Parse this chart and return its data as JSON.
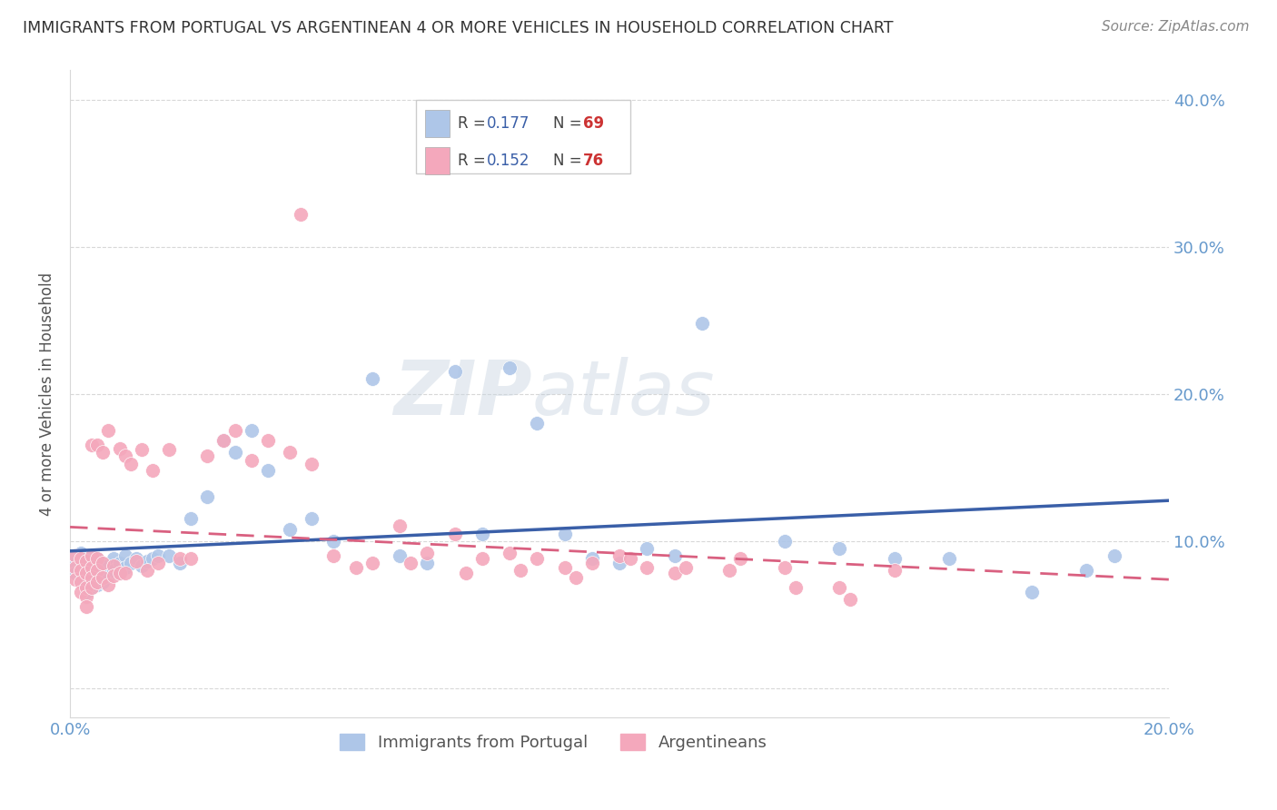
{
  "title": "IMMIGRANTS FROM PORTUGAL VS ARGENTINEAN 4 OR MORE VEHICLES IN HOUSEHOLD CORRELATION CHART",
  "source": "Source: ZipAtlas.com",
  "ylabel": "4 or more Vehicles in Household",
  "xlim": [
    0.0,
    0.2
  ],
  "ylim": [
    -0.02,
    0.42
  ],
  "ytick_positions": [
    0.0,
    0.1,
    0.2,
    0.3,
    0.4
  ],
  "ytick_labels_right": [
    "",
    "10.0%",
    "20.0%",
    "30.0%",
    "40.0%"
  ],
  "xtick_positions": [
    0.0,
    0.05,
    0.1,
    0.15,
    0.2
  ],
  "xtick_labels": [
    "0.0%",
    "",
    "",
    "",
    "20.0%"
  ],
  "color_portugal": "#aec6e8",
  "color_argentina": "#f4a8bc",
  "color_portugal_line": "#3a5fa8",
  "color_argentina_line": "#d96080",
  "color_tick": "#6699cc",
  "color_title": "#333333",
  "color_grid": "#d8d8d8",
  "watermark_text": "ZIPatlas",
  "legend_r1": "0.177",
  "legend_n1": "69",
  "legend_r2": "0.152",
  "legend_n2": "76",
  "port_x": [
    0.001,
    0.001,
    0.001,
    0.002,
    0.002,
    0.002,
    0.002,
    0.003,
    0.003,
    0.003,
    0.003,
    0.003,
    0.004,
    0.004,
    0.004,
    0.004,
    0.004,
    0.005,
    0.005,
    0.005,
    0.005,
    0.006,
    0.006,
    0.006,
    0.007,
    0.007,
    0.008,
    0.008,
    0.009,
    0.009,
    0.01,
    0.01,
    0.011,
    0.012,
    0.013,
    0.014,
    0.015,
    0.016,
    0.018,
    0.02,
    0.022,
    0.025,
    0.028,
    0.03,
    0.033,
    0.036,
    0.04,
    0.044,
    0.048,
    0.055,
    0.06,
    0.065,
    0.07,
    0.075,
    0.08,
    0.085,
    0.09,
    0.095,
    0.1,
    0.105,
    0.11,
    0.115,
    0.13,
    0.14,
    0.15,
    0.16,
    0.175,
    0.185,
    0.19
  ],
  "port_y": [
    0.085,
    0.09,
    0.078,
    0.088,
    0.082,
    0.075,
    0.092,
    0.086,
    0.08,
    0.074,
    0.07,
    0.065,
    0.09,
    0.085,
    0.078,
    0.072,
    0.068,
    0.088,
    0.082,
    0.076,
    0.07,
    0.085,
    0.078,
    0.072,
    0.083,
    0.076,
    0.088,
    0.08,
    0.085,
    0.078,
    0.09,
    0.082,
    0.085,
    0.088,
    0.083,
    0.086,
    0.088,
    0.09,
    0.09,
    0.085,
    0.115,
    0.13,
    0.168,
    0.16,
    0.175,
    0.148,
    0.108,
    0.115,
    0.1,
    0.21,
    0.09,
    0.085,
    0.215,
    0.105,
    0.218,
    0.18,
    0.105,
    0.088,
    0.085,
    0.095,
    0.09,
    0.248,
    0.1,
    0.095,
    0.088,
    0.088,
    0.065,
    0.08,
    0.09
  ],
  "arg_x": [
    0.001,
    0.001,
    0.001,
    0.002,
    0.002,
    0.002,
    0.002,
    0.003,
    0.003,
    0.003,
    0.003,
    0.003,
    0.004,
    0.004,
    0.004,
    0.004,
    0.004,
    0.005,
    0.005,
    0.005,
    0.005,
    0.006,
    0.006,
    0.006,
    0.007,
    0.007,
    0.008,
    0.008,
    0.009,
    0.009,
    0.01,
    0.01,
    0.011,
    0.012,
    0.013,
    0.014,
    0.015,
    0.016,
    0.018,
    0.02,
    0.022,
    0.025,
    0.028,
    0.03,
    0.033,
    0.036,
    0.04,
    0.044,
    0.048,
    0.055,
    0.06,
    0.065,
    0.07,
    0.075,
    0.08,
    0.085,
    0.09,
    0.095,
    0.1,
    0.105,
    0.11,
    0.12,
    0.13,
    0.14,
    0.15,
    0.042,
    0.052,
    0.062,
    0.072,
    0.082,
    0.092,
    0.102,
    0.112,
    0.122,
    0.132,
    0.142
  ],
  "arg_y": [
    0.09,
    0.082,
    0.074,
    0.088,
    0.08,
    0.072,
    0.065,
    0.086,
    0.078,
    0.068,
    0.062,
    0.055,
    0.165,
    0.09,
    0.082,
    0.075,
    0.068,
    0.088,
    0.08,
    0.072,
    0.165,
    0.085,
    0.16,
    0.075,
    0.175,
    0.07,
    0.083,
    0.076,
    0.163,
    0.078,
    0.158,
    0.078,
    0.152,
    0.086,
    0.162,
    0.08,
    0.148,
    0.085,
    0.162,
    0.088,
    0.088,
    0.158,
    0.168,
    0.175,
    0.155,
    0.168,
    0.16,
    0.152,
    0.09,
    0.085,
    0.11,
    0.092,
    0.105,
    0.088,
    0.092,
    0.088,
    0.082,
    0.085,
    0.09,
    0.082,
    0.078,
    0.08,
    0.082,
    0.068,
    0.08,
    0.322,
    0.082,
    0.085,
    0.078,
    0.08,
    0.075,
    0.088,
    0.082,
    0.088,
    0.068,
    0.06
  ]
}
